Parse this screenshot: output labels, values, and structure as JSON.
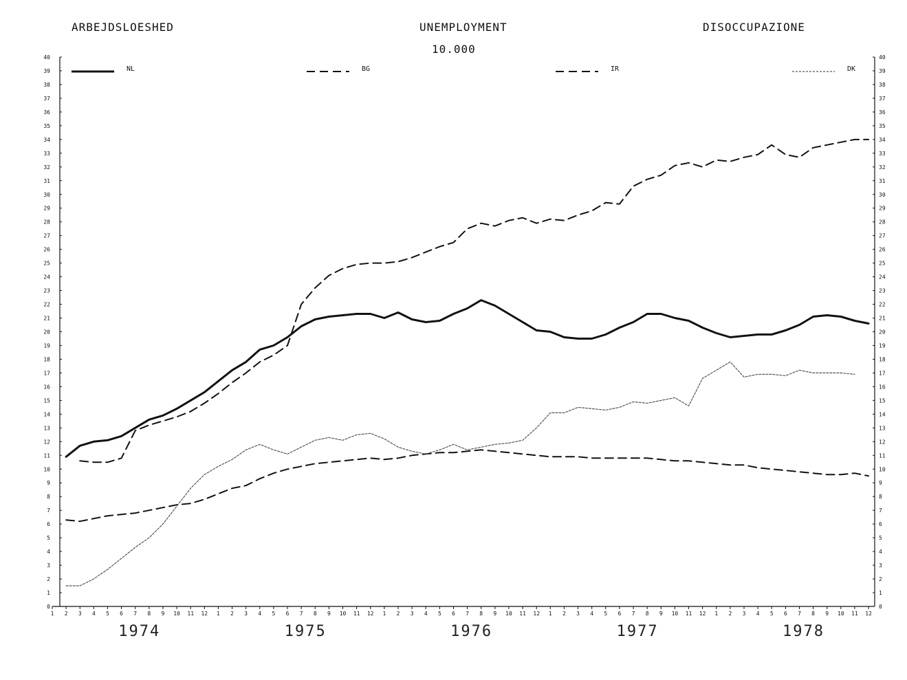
{
  "header": {
    "title_left": "ARBEJDSLOESHED",
    "title_center": "UNEMPLOYMENT",
    "title_right": "DISOCCUPAZIONE",
    "subtitle": "10.000"
  },
  "chart_data": {
    "type": "line",
    "title": "UNEMPLOYMENT",
    "unit": "10.000",
    "ylim": [
      0,
      40
    ],
    "yticks": [
      0,
      1,
      2,
      3,
      4,
      5,
      6,
      7,
      8,
      9,
      10,
      11,
      12,
      13,
      14,
      15,
      16,
      17,
      18,
      19,
      20,
      21,
      22,
      23,
      24,
      25,
      26,
      27,
      28,
      29,
      30,
      31,
      32,
      33,
      34,
      35,
      36,
      37,
      38,
      39,
      40
    ],
    "month_ticks": [
      "1",
      "2",
      "3",
      "4",
      "5",
      "6",
      "7",
      "8",
      "9",
      "10",
      "11",
      "12"
    ],
    "years": [
      "1974",
      "1975",
      "1976",
      "1977",
      "1978"
    ],
    "x_start": "1974-02",
    "legend_placement": "top",
    "series": [
      {
        "name": "NL",
        "style": "solid-thick",
        "color": "#111111",
        "values": [
          10.9,
          11.7,
          12.0,
          12.1,
          12.4,
          13.0,
          13.6,
          13.9,
          14.4,
          15.0,
          15.6,
          16.4,
          17.2,
          17.8,
          18.7,
          19.0,
          19.6,
          20.4,
          20.9,
          21.1,
          21.2,
          21.3,
          21.3,
          21.0,
          21.4,
          20.9,
          20.7,
          20.8,
          21.3,
          21.7,
          22.3,
          21.9,
          21.3,
          20.7,
          20.1,
          20.0,
          19.6,
          19.5,
          19.5,
          19.8,
          20.3,
          20.7,
          21.3,
          21.3,
          21.0,
          20.8,
          20.3,
          19.9,
          19.6,
          19.7,
          19.8,
          19.8,
          20.1,
          20.5,
          21.1,
          21.2,
          21.1,
          20.8,
          20.6
        ]
      },
      {
        "name": "BG",
        "style": "dashed",
        "color": "#111111",
        "values": [
          null,
          10.6,
          10.5,
          10.5,
          10.8,
          12.8,
          13.2,
          13.5,
          13.8,
          14.2,
          14.8,
          15.5,
          16.3,
          17.0,
          17.8,
          18.3,
          19.0,
          22.0,
          23.2,
          24.1,
          24.6,
          24.9,
          25.0,
          25.0,
          25.1,
          25.4,
          25.8,
          26.2,
          26.5,
          27.5,
          27.9,
          27.7,
          28.1,
          28.3,
          27.9,
          28.2,
          28.1,
          28.5,
          28.8,
          29.4,
          29.3,
          30.6,
          31.1,
          31.4,
          32.1,
          32.3,
          32.0,
          32.5,
          32.4,
          32.7,
          32.9,
          33.6,
          32.9,
          32.7,
          33.4,
          33.6,
          33.8,
          34.0,
          34.0
        ]
      },
      {
        "name": "IR",
        "style": "dashed",
        "color": "#111111",
        "values": [
          6.3,
          6.2,
          6.4,
          6.6,
          6.7,
          6.8,
          7.0,
          7.2,
          7.4,
          7.5,
          7.8,
          8.2,
          8.6,
          8.8,
          9.3,
          9.7,
          10.0,
          10.2,
          10.4,
          10.5,
          10.6,
          10.7,
          10.8,
          10.7,
          10.8,
          11.0,
          11.1,
          11.2,
          11.2,
          11.3,
          11.4,
          11.3,
          11.2,
          11.1,
          11.0,
          10.9,
          10.9,
          10.9,
          10.8,
          10.8,
          10.8,
          10.8,
          10.8,
          10.7,
          10.6,
          10.6,
          10.5,
          10.4,
          10.3,
          10.3,
          10.1,
          10.0,
          9.9,
          9.8,
          9.7,
          9.6,
          9.6,
          9.7,
          9.5
        ]
      },
      {
        "name": "DK",
        "style": "dotted",
        "color": "#555555",
        "values": [
          1.5,
          1.5,
          2.0,
          2.7,
          3.5,
          4.3,
          5.0,
          6.0,
          7.3,
          8.6,
          9.6,
          10.2,
          10.7,
          11.4,
          11.8,
          11.4,
          11.1,
          11.6,
          12.1,
          12.3,
          12.1,
          12.5,
          12.6,
          12.2,
          11.6,
          11.3,
          11.1,
          11.4,
          11.8,
          11.4,
          11.6,
          11.8,
          11.9,
          12.1,
          13.0,
          14.1,
          14.1,
          14.5,
          14.4,
          14.3,
          14.5,
          14.9,
          14.8,
          15.0,
          15.2,
          14.6,
          16.6,
          17.2,
          17.8,
          16.7,
          16.9,
          16.9,
          16.8,
          17.2,
          17.0,
          17.0,
          17.0,
          16.9
        ]
      }
    ]
  }
}
